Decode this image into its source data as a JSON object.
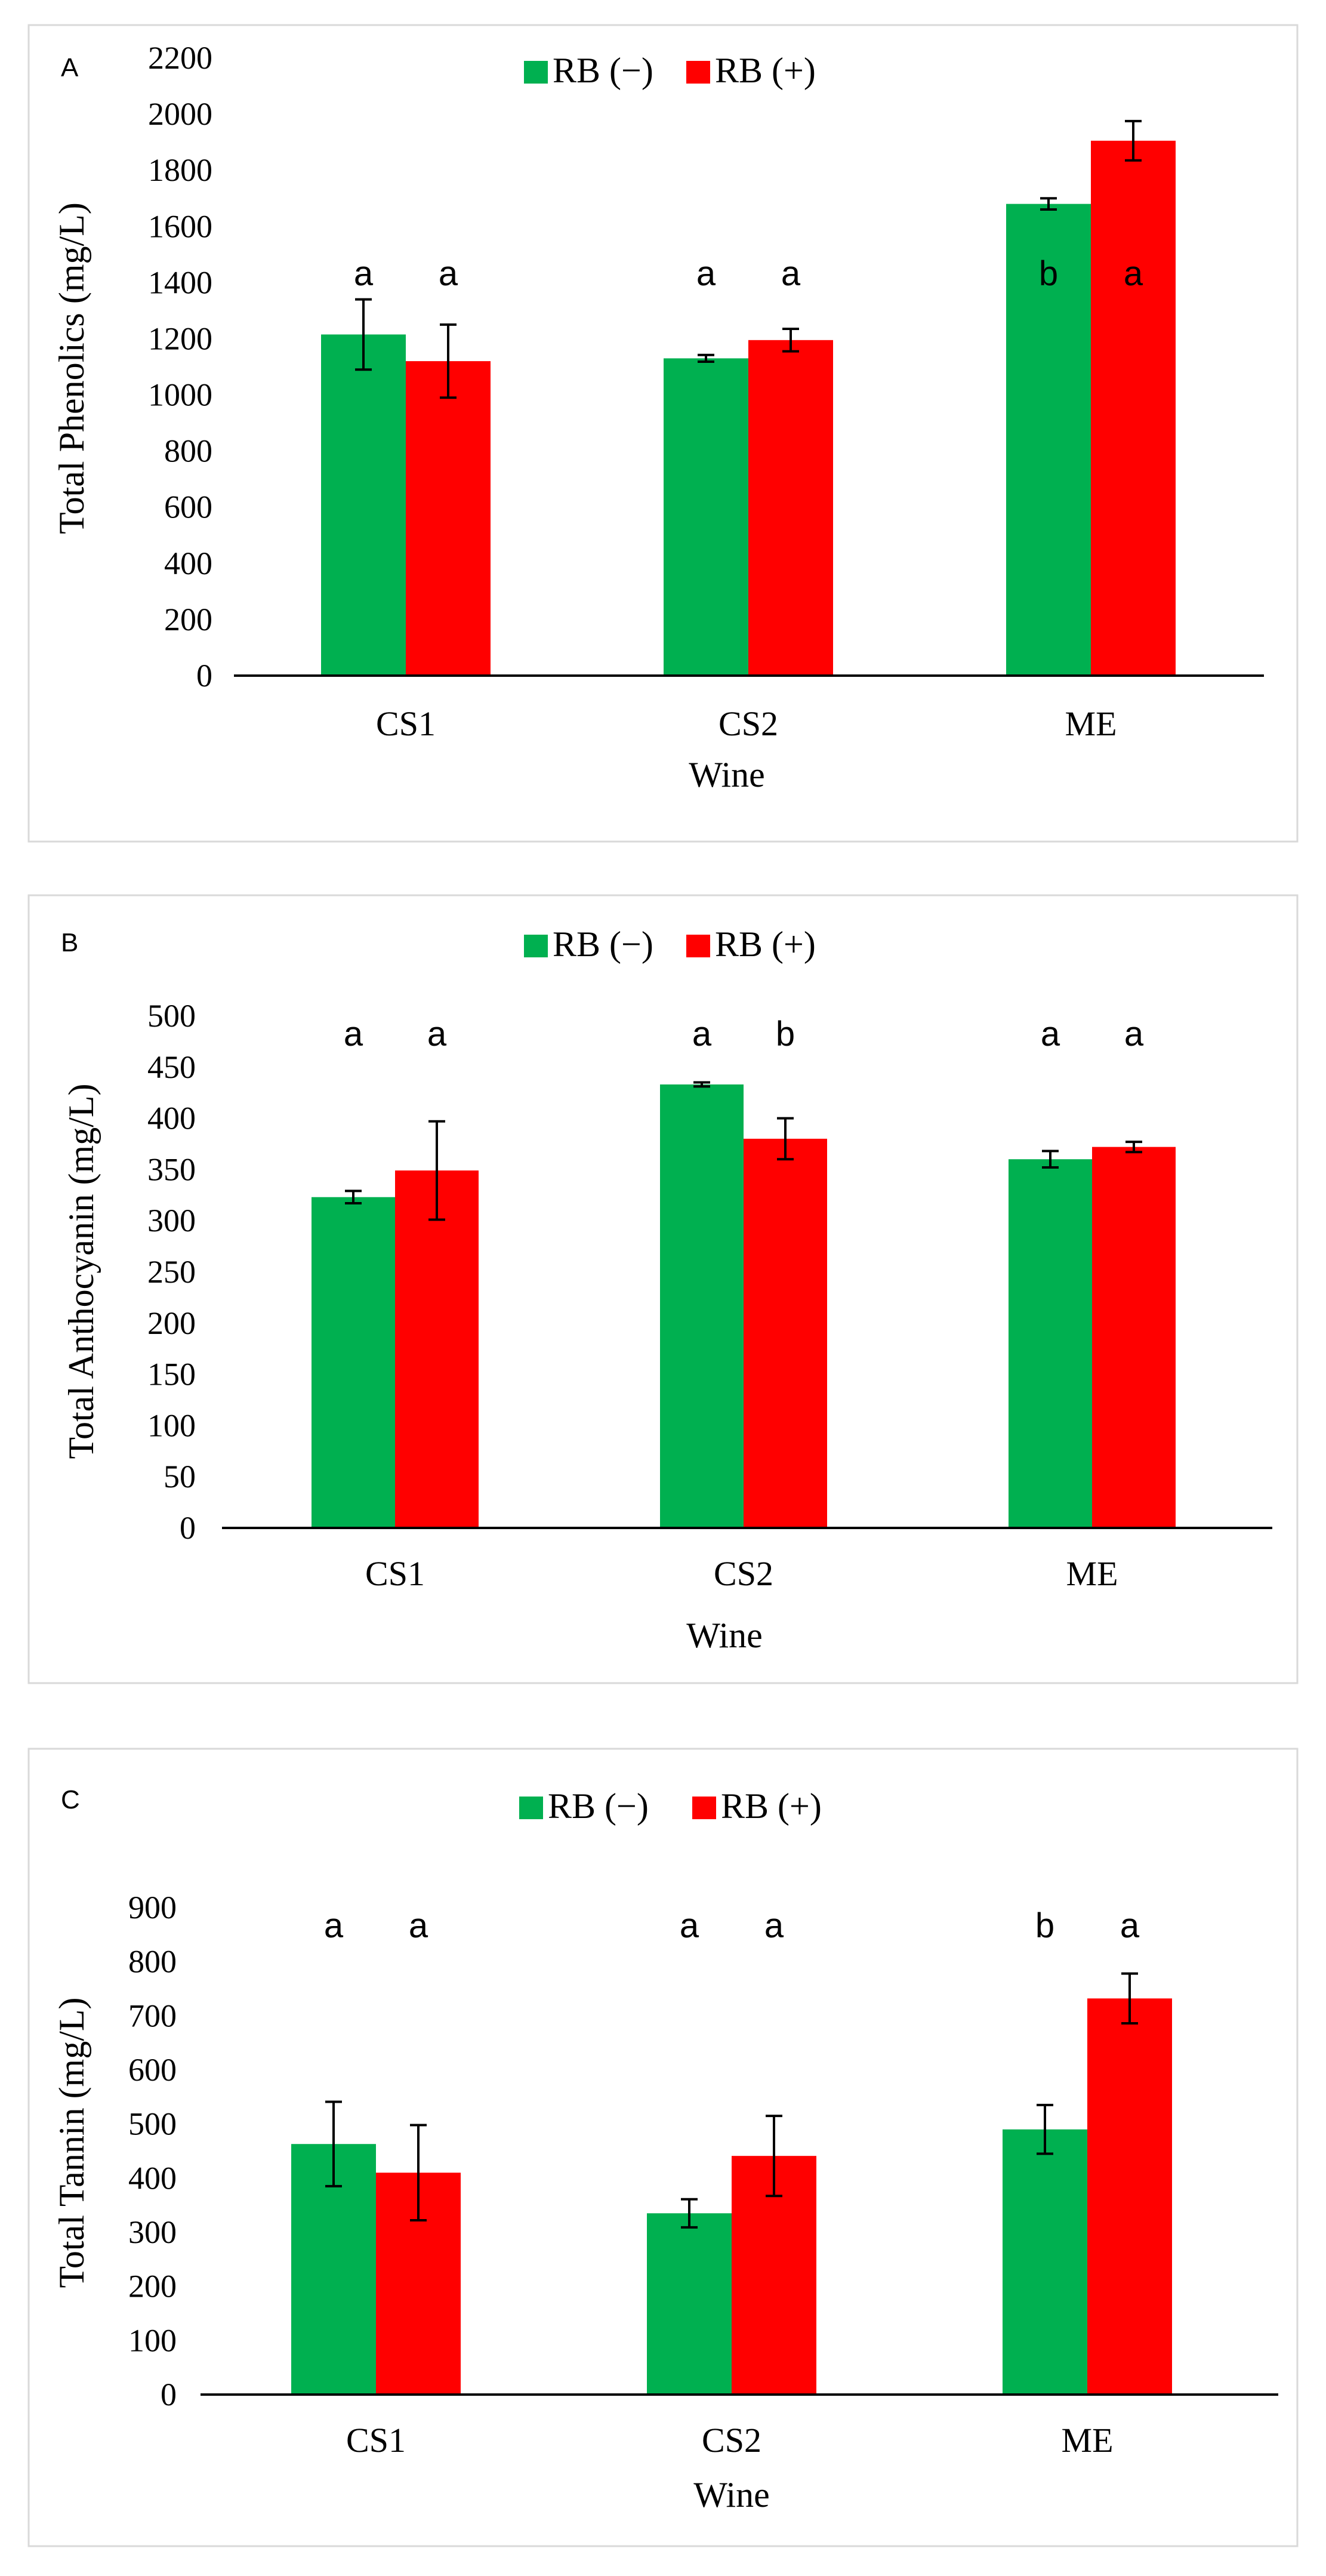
{
  "colors": {
    "rb_minus": "#00b050",
    "rb_plus": "#ff0000",
    "axis": "#000000",
    "frame": "#d9d9d9"
  },
  "chart_data": [
    {
      "type": "bar",
      "panel_label": "A",
      "title": "",
      "xlabel": "Wine",
      "ylabel": "Total Phenolics (mg/L)",
      "ylim": [
        0,
        2200
      ],
      "ytick_step": 200,
      "yticks": [
        "0",
        "200",
        "400",
        "600",
        "800",
        "1000",
        "1200",
        "1400",
        "1600",
        "1800",
        "2000",
        "2200"
      ],
      "categories": [
        "CS1",
        "CS2",
        "ME"
      ],
      "legend": {
        "position": "top-center"
      },
      "series": [
        {
          "name": "RB (−)",
          "color": "#00b050",
          "values": [
            1215,
            1130,
            1680
          ],
          "errors": [
            125,
            12,
            20
          ],
          "letters": [
            "a",
            "a",
            "b"
          ]
        },
        {
          "name": "RB (+)",
          "color": "#ff0000",
          "values": [
            1120,
            1195,
            1905
          ],
          "errors": [
            130,
            40,
            70
          ],
          "letters": [
            "a",
            "a",
            "a"
          ]
        }
      ]
    },
    {
      "type": "bar",
      "panel_label": "B",
      "title": "",
      "xlabel": "Wine",
      "ylabel": "Total Anthocyanin (mg/L)",
      "ylim": [
        0,
        500
      ],
      "ytick_step": 50,
      "yticks": [
        "0",
        "50",
        "100",
        "150",
        "200",
        "250",
        "300",
        "350",
        "400",
        "450",
        "500"
      ],
      "categories": [
        "CS1",
        "CS2",
        "ME"
      ],
      "legend": {
        "position": "top-center"
      },
      "series": [
        {
          "name": "RB (−)",
          "color": "#00b050",
          "values": [
            323,
            433,
            360
          ],
          "errors": [
            6,
            2,
            8
          ],
          "letters": [
            "a",
            "a",
            "a"
          ]
        },
        {
          "name": "RB (+)",
          "color": "#ff0000",
          "values": [
            349,
            380,
            372
          ],
          "errors": [
            48,
            20,
            5
          ],
          "letters": [
            "a",
            "b",
            "a"
          ]
        }
      ]
    },
    {
      "type": "bar",
      "panel_label": "C",
      "title": "",
      "xlabel": "Wine",
      "ylabel": "Total Tannin (mg/L)",
      "ylim": [
        0,
        900
      ],
      "ytick_step": 100,
      "yticks": [
        "0",
        "100",
        "200",
        "300",
        "400",
        "500",
        "600",
        "700",
        "800",
        "900"
      ],
      "categories": [
        "CS1",
        "CS2",
        "ME"
      ],
      "legend": {
        "position": "top-center"
      },
      "series": [
        {
          "name": "RB (−)",
          "color": "#00b050",
          "values": [
            463,
            335,
            490
          ],
          "errors": [
            78,
            26,
            45
          ],
          "letters": [
            "a",
            "a",
            "b"
          ]
        },
        {
          "name": "RB (+)",
          "color": "#ff0000",
          "values": [
            410,
            441,
            732
          ],
          "errors": [
            88,
            74,
            46
          ],
          "letters": [
            "a",
            "a",
            "a"
          ]
        }
      ]
    }
  ]
}
